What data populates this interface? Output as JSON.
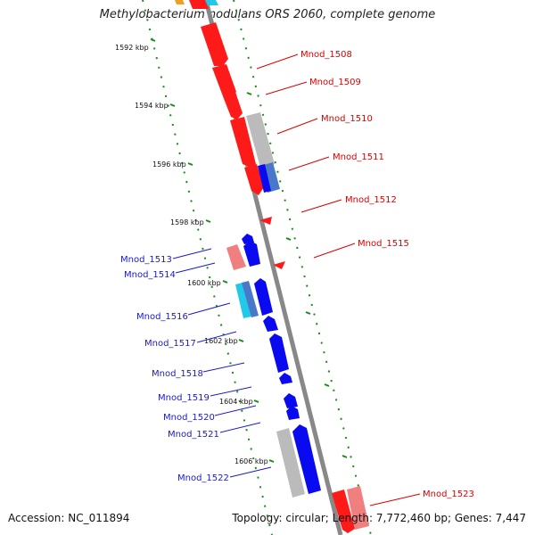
{
  "title": "Methylobacterium nodulans ORS 2060, complete genome",
  "accession_text": "Accession: NC_011894",
  "summary_text": "Topology: circular; Length: 7,772,460 bp; Genes: 7,447",
  "colors": {
    "forward": "#ff1a1a",
    "reverse": "#0a0af0",
    "pink": "#f08080",
    "gray": "#bbbbbb",
    "cyan": "#22c8e8",
    "steel": "#4a78c8",
    "axis": "#888888",
    "ticks": "#1a8a1a",
    "orange": "#f0a020"
  },
  "ticks": [
    "1592 kbp",
    "1594 kbp",
    "1596 kbp",
    "1598 kbp",
    "1600 kbp",
    "1602 kbp",
    "1604 kbp",
    "1606 kbp"
  ],
  "labels_right": [
    "Mnod_1508",
    "Mnod_1509",
    "Mnod_1510",
    "Mnod_1511",
    "Mnod_1512",
    "Mnod_1515",
    "Mnod_1523"
  ],
  "labels_left": [
    "Mnod_1513",
    "Mnod_1514",
    "Mnod_1516",
    "Mnod_1517",
    "Mnod_1518",
    "Mnod_1519",
    "Mnod_1520",
    "Mnod_1521",
    "Mnod_1522"
  ]
}
